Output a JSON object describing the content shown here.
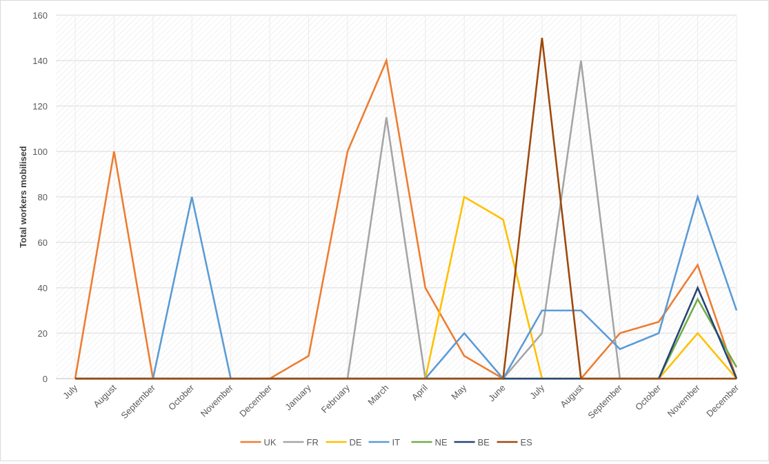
{
  "chart_data": {
    "type": "line",
    "title": "",
    "xlabel": "",
    "ylabel": "Total workers mobilised",
    "ylim": [
      0,
      160
    ],
    "yticks": [
      0,
      20,
      40,
      60,
      80,
      100,
      120,
      140,
      160
    ],
    "grid": true,
    "legend_position": "bottom",
    "categories": [
      "July",
      "August",
      "September",
      "October",
      "November",
      "December",
      "January",
      "February",
      "March",
      "April",
      "May",
      "June",
      "July",
      "August",
      "September",
      "October",
      "November",
      "December"
    ],
    "series": [
      {
        "name": "UK",
        "color": "#ED7D31",
        "values": [
          0,
          100,
          0,
          0,
          0,
          0,
          10,
          100,
          140,
          40,
          10,
          0,
          0,
          0,
          20,
          25,
          50,
          0
        ]
      },
      {
        "name": "FR",
        "color": "#A5A5A5",
        "values": [
          0,
          0,
          0,
          0,
          0,
          0,
          0,
          0,
          115,
          0,
          0,
          0,
          20,
          140,
          0,
          0,
          0,
          0
        ]
      },
      {
        "name": "DE",
        "color": "#FFC000",
        "values": [
          0,
          0,
          0,
          0,
          0,
          0,
          0,
          0,
          0,
          0,
          80,
          70,
          0,
          0,
          0,
          0,
          20,
          0
        ]
      },
      {
        "name": "IT",
        "color": "#5B9BD5",
        "values": [
          0,
          0,
          0,
          80,
          0,
          0,
          0,
          0,
          0,
          0,
          20,
          0,
          30,
          30,
          13,
          20,
          80,
          30
        ]
      },
      {
        "name": "NE",
        "color": "#70AD47",
        "values": [
          0,
          0,
          0,
          0,
          0,
          0,
          0,
          0,
          0,
          0,
          0,
          0,
          0,
          0,
          0,
          0,
          35,
          5
        ]
      },
      {
        "name": "BE",
        "color": "#264478",
        "values": [
          0,
          0,
          0,
          0,
          0,
          0,
          0,
          0,
          0,
          0,
          0,
          0,
          0,
          0,
          0,
          0,
          40,
          0
        ]
      },
      {
        "name": "ES",
        "color": "#9E480E",
        "values": [
          0,
          0,
          0,
          0,
          0,
          0,
          0,
          0,
          0,
          0,
          0,
          0,
          150,
          0,
          0,
          0,
          0,
          0
        ]
      }
    ]
  }
}
